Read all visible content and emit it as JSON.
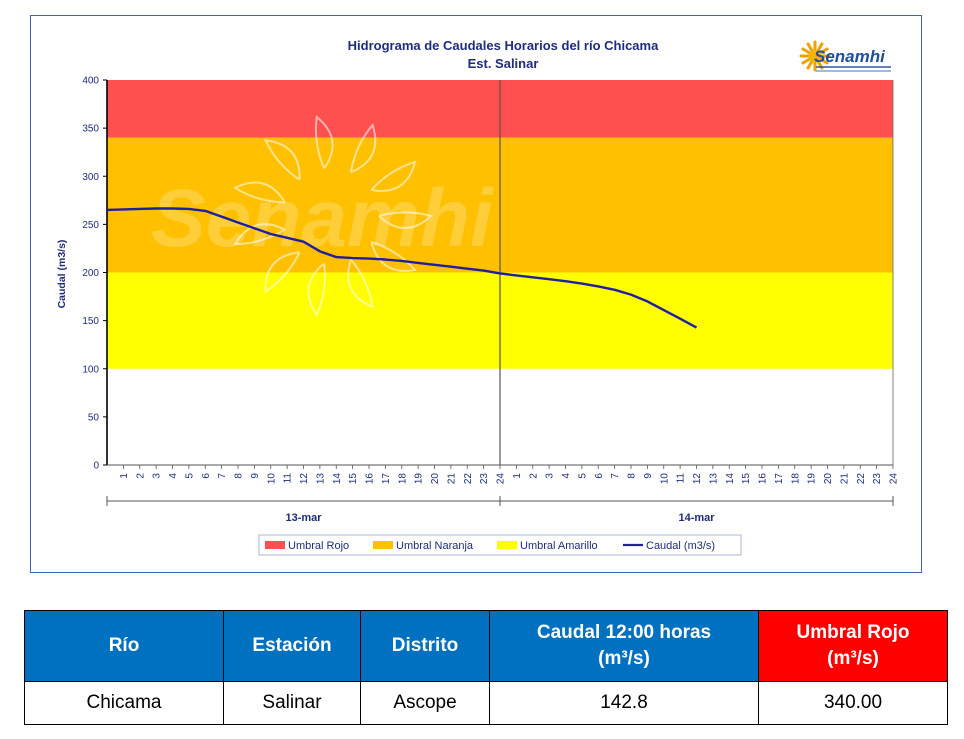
{
  "chart_data": {
    "type": "line",
    "title": "Hidrograma de Caudales Horarios del río Chicama",
    "subtitle": "Est. Salinar",
    "ylabel": "Caudal  (m3/s)",
    "ylim": [
      0,
      400
    ],
    "yticks": [
      0,
      50,
      100,
      150,
      200,
      250,
      300,
      350,
      400
    ],
    "days": [
      "13-mar",
      "14-mar"
    ],
    "hour_labels": [
      "1",
      "2",
      "3",
      "4",
      "5",
      "6",
      "7",
      "8",
      "9",
      "10",
      "11",
      "12",
      "13",
      "14",
      "15",
      "16",
      "17",
      "18",
      "19",
      "20",
      "21",
      "22",
      "23",
      "24"
    ],
    "grid": false,
    "legend_position": "bottom",
    "thresholds": [
      {
        "name": "Umbral Rojo",
        "from": 340,
        "to": 400,
        "color": "#ff5050"
      },
      {
        "name": "Umbral Naranja",
        "from": 200,
        "to": 340,
        "color": "#ffc000"
      },
      {
        "name": "Umbral Amarillo",
        "from": 100,
        "to": 200,
        "color": "#ffff00"
      }
    ],
    "series": [
      {
        "name": "Caudal (m3/s)",
        "color": "#1f1fa0",
        "x": [
          "13-mar 0:00",
          "13-mar 1:00",
          "13-mar 2:00",
          "13-mar 3:00",
          "13-mar 4:00",
          "13-mar 5:00",
          "13-mar 6:00",
          "13-mar 7:00",
          "13-mar 8:00",
          "13-mar 9:00",
          "13-mar 10:00",
          "13-mar 11:00",
          "13-mar 12:00",
          "13-mar 13:00",
          "13-mar 14:00",
          "13-mar 15:00",
          "13-mar 16:00",
          "13-mar 17:00",
          "13-mar 18:00",
          "13-mar 19:00",
          "13-mar 20:00",
          "13-mar 21:00",
          "13-mar 22:00",
          "13-mar 23:00",
          "14-mar 0:00",
          "14-mar 1:00",
          "14-mar 2:00",
          "14-mar 3:00",
          "14-mar 4:00",
          "14-mar 5:00",
          "14-mar 6:00",
          "14-mar 7:00",
          "14-mar 8:00",
          "14-mar 9:00",
          "14-mar 10:00",
          "14-mar 11:00",
          "14-mar 12:00"
        ],
        "values": [
          265,
          265.5,
          266,
          266.5,
          266.5,
          266,
          264,
          258,
          252,
          246,
          240,
          236,
          232,
          222,
          216,
          215,
          214.5,
          213.5,
          212,
          210,
          208,
          206,
          204,
          202,
          199,
          197,
          195,
          193,
          191,
          188.5,
          185.5,
          182,
          177,
          170,
          161,
          152,
          142.8
        ]
      }
    ]
  },
  "watermark": "Senamhi",
  "logo": {
    "text": "Senamhi"
  },
  "table": {
    "headers": [
      "Río",
      "Estación",
      "Distrito",
      "Caudal 12:00 horas (m³/s)",
      "Umbral Rojo (m³/s)"
    ],
    "header_line1": [
      "Río",
      "Estación",
      "Distrito",
      "Caudal 12:00 horas",
      "Umbral Rojo"
    ],
    "header_line2": [
      "",
      "",
      "",
      "(m³/s)",
      "(m³/s)"
    ],
    "row": [
      "Chicama",
      "Salinar",
      "Ascope",
      "142.8",
      "340.00"
    ],
    "colors": {
      "header_bg": "#0070c0",
      "highlight_bg": "#ff0000"
    }
  }
}
